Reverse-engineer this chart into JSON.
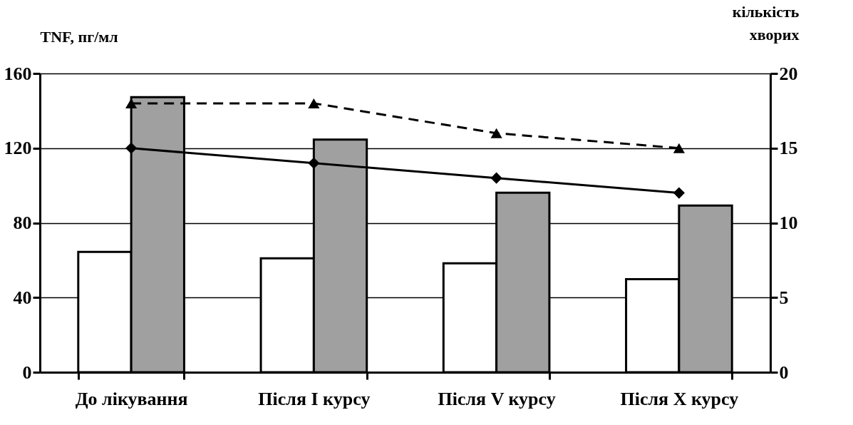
{
  "chart_data": {
    "type": "bar",
    "ylabel": "TNF, пг/мл",
    "y2label": "кількість хворих",
    "categories": [
      "До лікування",
      "Після I курсу",
      "Після V курсу",
      "Після X курсу"
    ],
    "series": [
      {
        "color": "#ffffff",
        "values": [
          64.4,
          61,
          58.3,
          49.8
        ]
      },
      {
        "color": "#a0a0a0",
        "values": [
          147.3,
          124.6,
          96.1,
          89.3
        ]
      },
      {
        "type": "line",
        "axis": "y2",
        "color": "#000000",
        "marker": "triangle",
        "line_style": "dashed",
        "values": [
          18,
          18,
          16,
          15
        ]
      },
      {
        "type": "line",
        "axis": "y2",
        "color": "#000000",
        "marker": "diamond",
        "line_style": "solid",
        "values": [
          15,
          14,
          13,
          12
        ]
      }
    ],
    "ylim": [
      0,
      160
    ],
    "yticks": [
      0,
      40,
      80,
      120,
      160
    ],
    "y2lim": [
      0,
      20
    ],
    "y2ticks": [
      0,
      5,
      10,
      15,
      20
    ],
    "grid": "y",
    "legend": false
  }
}
